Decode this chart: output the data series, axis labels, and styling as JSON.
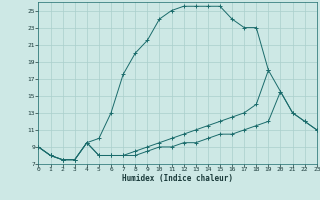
{
  "xlabel": "Humidex (Indice chaleur)",
  "bg_color": "#cde8e5",
  "grid_color": "#aacfcc",
  "line_color": "#1a6b6b",
  "xlim": [
    0,
    23
  ],
  "ylim": [
    7,
    26
  ],
  "xticks": [
    0,
    1,
    2,
    3,
    4,
    5,
    6,
    7,
    8,
    9,
    10,
    11,
    12,
    13,
    14,
    15,
    16,
    17,
    18,
    19,
    20,
    21,
    22,
    23
  ],
  "yticks": [
    7,
    9,
    11,
    13,
    15,
    17,
    19,
    21,
    23,
    25
  ],
  "series1": {
    "x": [
      0,
      1,
      2,
      3,
      4,
      5,
      6,
      7,
      8,
      9,
      10,
      11,
      12,
      13,
      14,
      15,
      16,
      17,
      18,
      19
    ],
    "y": [
      9,
      8,
      7.5,
      7.5,
      9.5,
      10,
      13,
      17.5,
      20,
      21.5,
      24,
      25,
      25.5,
      25.5,
      25.5,
      25.5,
      24,
      23,
      23,
      18
    ]
  },
  "series2": {
    "x": [
      0,
      1,
      2,
      3,
      4,
      5,
      6,
      7,
      8,
      9,
      10,
      11,
      12,
      13,
      14,
      15,
      16,
      17,
      18,
      19,
      20,
      21,
      22,
      23
    ],
    "y": [
      9,
      8,
      7.5,
      7.5,
      9.5,
      8,
      8,
      8,
      8.5,
      9,
      9.5,
      10,
      10.5,
      11,
      11.5,
      12,
      12.5,
      13,
      14,
      18,
      15.5,
      13,
      12,
      11
    ]
  },
  "series3": {
    "x": [
      0,
      1,
      2,
      3,
      4,
      5,
      6,
      7,
      8,
      9,
      10,
      11,
      12,
      13,
      14,
      15,
      16,
      17,
      18,
      19,
      20,
      21,
      22,
      23
    ],
    "y": [
      9,
      8,
      7.5,
      7.5,
      9.5,
      8,
      8,
      8,
      8,
      8.5,
      9,
      9,
      9.5,
      9.5,
      10,
      10.5,
      10.5,
      11,
      11.5,
      12,
      15.5,
      13,
      12,
      11
    ]
  }
}
